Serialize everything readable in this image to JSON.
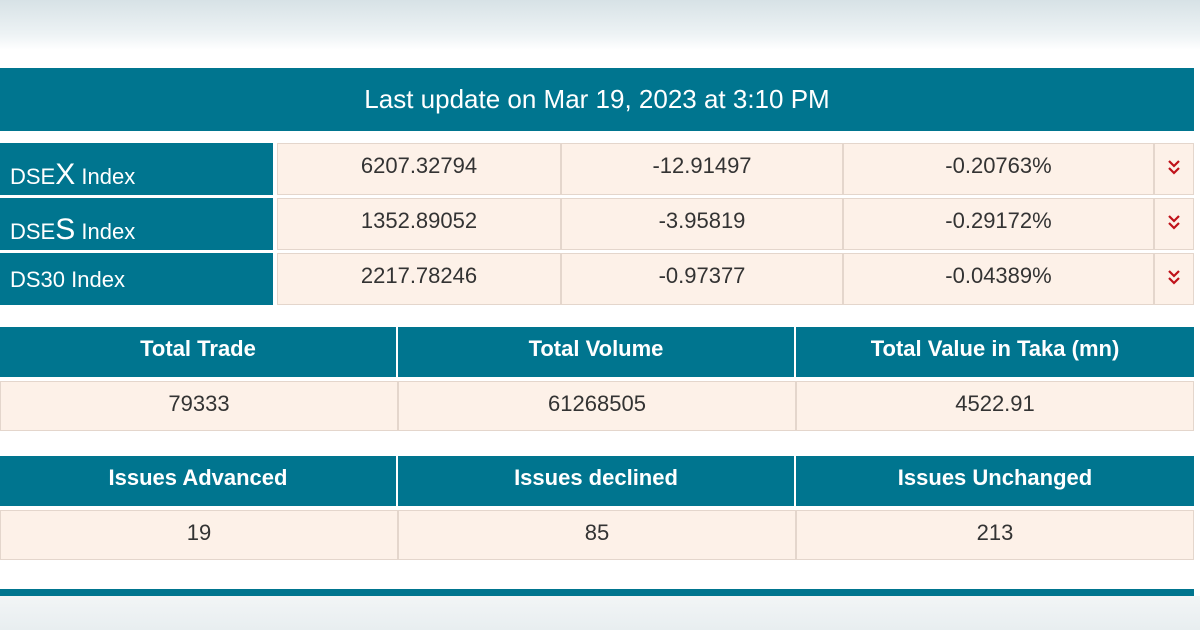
{
  "header": {
    "update_text": "Last update on Mar 19, 2023 at 3:10 PM"
  },
  "indices": [
    {
      "prefix": "DSE",
      "letter": "X",
      "suffix": " Index",
      "value": "6207.32794",
      "change": "-12.91497",
      "percent": "-0.20763%",
      "trend_icon": "double-chevron-down-icon"
    },
    {
      "prefix": "DSE",
      "letter": "S",
      "suffix": " Index",
      "value": "1352.89052",
      "change": "-3.95819",
      "percent": "-0.29172%",
      "trend_icon": "double-chevron-down-icon"
    },
    {
      "prefix": "DS30",
      "letter": "",
      "suffix": " Index",
      "value": "2217.78246",
      "change": "-0.97377",
      "percent": "-0.04389%",
      "trend_icon": "double-chevron-down-icon"
    }
  ],
  "trade_stats": {
    "headers": [
      "Total Trade",
      "Total Volume",
      "Total Value in Taka (mn)"
    ],
    "values": [
      "79333",
      "61268505",
      "4522.91"
    ]
  },
  "issue_stats": {
    "headers": [
      "Issues Advanced",
      "Issues declined",
      "Issues Unchanged"
    ],
    "values": [
      "19",
      "85",
      "213"
    ]
  },
  "colors": {
    "accent": "#00758f",
    "cell_bg": "#fdf1e8",
    "down": "#c0121a"
  }
}
